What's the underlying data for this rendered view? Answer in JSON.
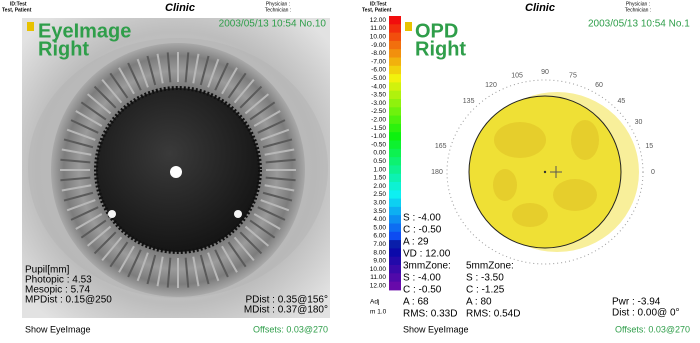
{
  "left_panel": {
    "header": {
      "id": "ID:Test",
      "patient": "Test, Patient",
      "clinic": "Clinic",
      "physician": "Physician :",
      "technician": "Technician :"
    },
    "title": [
      "EyeImage",
      "Right"
    ],
    "timestamp": "2003/05/13 10:54 No.10",
    "pupil": [
      "Pupil[mm]",
      "Photopic : 4.53",
      "Mesopic : 5.74",
      "MPDist : 0.15@250"
    ],
    "dist": [
      "PDist : 0.35@156°",
      "MDist : 0.37@180°"
    ],
    "footer": {
      "button": "Show EyeImage",
      "offsets": "Offsets: 0.03@270"
    }
  },
  "right_panel": {
    "header": {
      "id": "ID:Test",
      "patient": "Test, Patient",
      "clinic": "Clinic",
      "physician": "Physician :",
      "technician": "Technician :"
    },
    "title": [
      "OPD",
      "Right"
    ],
    "timestamp": "2003/05/13 10:54 No.1",
    "scale_labels": [
      "12.00",
      "11.00",
      "10.00",
      "-9.00",
      "-8.00",
      "-7.00",
      "-6.00",
      "-5.00",
      "-4.00",
      "-3.50",
      "-3.00",
      "-2.50",
      "-2.00",
      "-1.50",
      "-1.00",
      "-0.50",
      "0.00",
      "0.50",
      "1.00",
      "1.50",
      "2.00",
      "2.50",
      "3.00",
      "3.50",
      "4.00",
      "5.00",
      "6.00",
      "7.00",
      "8.00",
      "9.00",
      "10.00",
      "11.00",
      "12.00"
    ],
    "scale_footer": [
      "Adj",
      "m 1.0"
    ],
    "angles": [
      "0",
      "15",
      "30",
      "45",
      "60",
      "75",
      "90",
      "105",
      "120",
      "135",
      "165",
      "180"
    ],
    "refraction": [
      "S : -4.00",
      "C : -0.50",
      "A : 29",
      "VD : 12.00"
    ],
    "zone3": [
      "3mmZone:",
      "S : -4.00",
      "C : -0.50",
      "A : 68",
      "RMS: 0.33D"
    ],
    "zone5": [
      "5mmZone:",
      "S : -3.50",
      "C : -1.25",
      "A : 80",
      "RMS: 0.54D"
    ],
    "power": [
      "Pwr : -3.94",
      "Dist : 0.00@ 0°"
    ],
    "footer": {
      "button": "Show EyeImage",
      "offsets": "Offsets: 0.03@270"
    }
  }
}
